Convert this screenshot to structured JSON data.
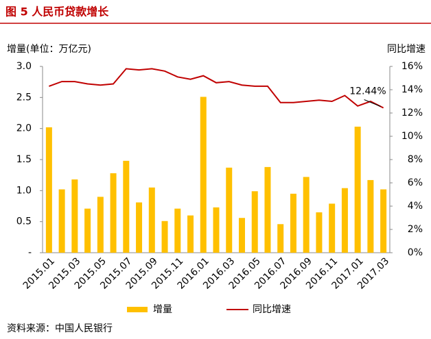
{
  "chart_data": {
    "type": "bar",
    "title": "图 5   人民币贷款增长",
    "y_label": "增量(单位：万亿元)",
    "y2_label": "同比增速",
    "source": "资料来源：中国人民银行",
    "categories": [
      "2015.01",
      null,
      "2015.03",
      null,
      "2015.05",
      null,
      "2015.07",
      null,
      "2015.09",
      null,
      "2015.11",
      null,
      "2016.01",
      null,
      "2016.03",
      null,
      "2016.05",
      null,
      "2016.07",
      null,
      "2016.09",
      null,
      "2016.11",
      null,
      "2017.01",
      null,
      "2017.03"
    ],
    "series": [
      {
        "name": "增量",
        "type": "bar",
        "color": "#FFC000",
        "values": [
          2.02,
          1.02,
          1.18,
          0.71,
          0.9,
          1.28,
          1.48,
          0.81,
          1.05,
          0.51,
          0.71,
          0.6,
          2.51,
          0.73,
          1.37,
          0.56,
          0.99,
          1.38,
          0.46,
          0.95,
          1.22,
          0.65,
          0.79,
          1.04,
          2.03,
          1.17,
          1.02
        ]
      },
      {
        "name": "同比增速",
        "type": "line",
        "axis": "y2",
        "color": "#C00000",
        "values": [
          14.3,
          14.7,
          14.7,
          14.5,
          14.4,
          14.5,
          15.8,
          15.7,
          15.8,
          15.6,
          15.1,
          14.9,
          15.2,
          14.6,
          14.7,
          14.4,
          14.3,
          14.3,
          12.9,
          12.9,
          13.0,
          13.1,
          13.0,
          13.5,
          12.6,
          13.0,
          12.44
        ],
        "value_labels": [
          null,
          null,
          null,
          null,
          null,
          null,
          null,
          null,
          null,
          null,
          null,
          null,
          null,
          null,
          null,
          null,
          null,
          null,
          null,
          null,
          null,
          null,
          null,
          null,
          null,
          null,
          "12.44%"
        ]
      }
    ],
    "ylim": [
      0,
      3
    ],
    "yticks": [
      {
        "value": 0,
        "label": "-"
      },
      0.5,
      {
        "value": 1,
        "label": "1.0"
      },
      1.5,
      {
        "value": 2,
        "label": "2.0"
      },
      2.5,
      {
        "value": 3,
        "label": "3.0"
      }
    ],
    "y2lim": [
      0,
      16
    ],
    "y2ticks": [
      {
        "value": 0,
        "label": "0%"
      },
      {
        "value": 2,
        "label": "2%"
      },
      {
        "value": 4,
        "label": "4%"
      },
      {
        "value": 6,
        "label": "6%"
      },
      {
        "value": 8,
        "label": "8%"
      },
      {
        "value": 10,
        "label": "10%"
      },
      {
        "value": 12,
        "label": "12%"
      },
      {
        "value": 14,
        "label": "14%"
      },
      {
        "value": 16,
        "label": "16%"
      }
    ],
    "grid": false
  }
}
